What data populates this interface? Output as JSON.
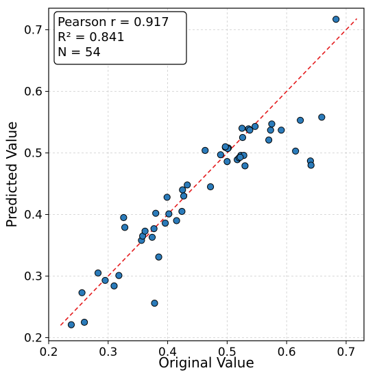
{
  "chart_data": {
    "type": "scatter",
    "title": "",
    "xlabel": "Original Value",
    "ylabel": "Predicted Value",
    "xlim": [
      0.2,
      0.73
    ],
    "ylim": [
      0.195,
      0.735
    ],
    "xticks": [
      "0.2",
      "0.3",
      "0.4",
      "0.5",
      "0.6",
      "0.7"
    ],
    "yticks": [
      "0.2",
      "0.3",
      "0.4",
      "0.5",
      "0.6",
      "0.7"
    ],
    "grid": true,
    "annotation": {
      "lines": [
        "Pearson r = 0.917",
        "R² = 0.841",
        "N = 54"
      ],
      "placement": "top-left"
    },
    "identity_line": {
      "from": [
        0.22,
        0.22
      ],
      "to": [
        0.718,
        0.718
      ],
      "color": "#e41a1c",
      "style": "dashed"
    },
    "marker_color": "#2b7bba",
    "series": [
      {
        "points": [
          [
            0.238,
            0.221
          ],
          [
            0.256,
            0.273
          ],
          [
            0.26,
            0.225
          ],
          [
            0.283,
            0.305
          ],
          [
            0.295,
            0.293
          ],
          [
            0.31,
            0.284
          ],
          [
            0.318,
            0.301
          ],
          [
            0.326,
            0.395
          ],
          [
            0.328,
            0.379
          ],
          [
            0.356,
            0.358
          ],
          [
            0.358,
            0.365
          ],
          [
            0.362,
            0.373
          ],
          [
            0.374,
            0.363
          ],
          [
            0.377,
            0.377
          ],
          [
            0.378,
            0.256
          ],
          [
            0.38,
            0.402
          ],
          [
            0.385,
            0.331
          ],
          [
            0.396,
            0.386
          ],
          [
            0.399,
            0.428
          ],
          [
            0.402,
            0.401
          ],
          [
            0.415,
            0.39
          ],
          [
            0.424,
            0.405
          ],
          [
            0.425,
            0.44
          ],
          [
            0.427,
            0.43
          ],
          [
            0.433,
            0.448
          ],
          [
            0.463,
            0.504
          ],
          [
            0.472,
            0.445
          ],
          [
            0.489,
            0.497
          ],
          [
            0.497,
            0.509
          ],
          [
            0.5,
            0.486
          ],
          [
            0.502,
            0.508
          ],
          [
            0.517,
            0.489
          ],
          [
            0.52,
            0.492
          ],
          [
            0.523,
            0.496
          ],
          [
            0.525,
            0.54
          ],
          [
            0.526,
            0.525
          ],
          [
            0.528,
            0.496
          ],
          [
            0.53,
            0.479
          ],
          [
            0.536,
            0.539
          ],
          [
            0.547,
            0.543
          ],
          [
            0.57,
            0.521
          ],
          [
            0.573,
            0.537
          ],
          [
            0.575,
            0.547
          ],
          [
            0.591,
            0.537
          ],
          [
            0.615,
            0.503
          ],
          [
            0.623,
            0.553
          ],
          [
            0.64,
            0.487
          ],
          [
            0.641,
            0.48
          ],
          [
            0.659,
            0.558
          ],
          [
            0.683,
            0.717
          ],
          [
            0.501,
            0.507
          ],
          [
            0.522,
            0.493
          ],
          [
            0.538,
            0.537
          ],
          [
            0.497,
            0.51
          ]
        ]
      }
    ]
  }
}
